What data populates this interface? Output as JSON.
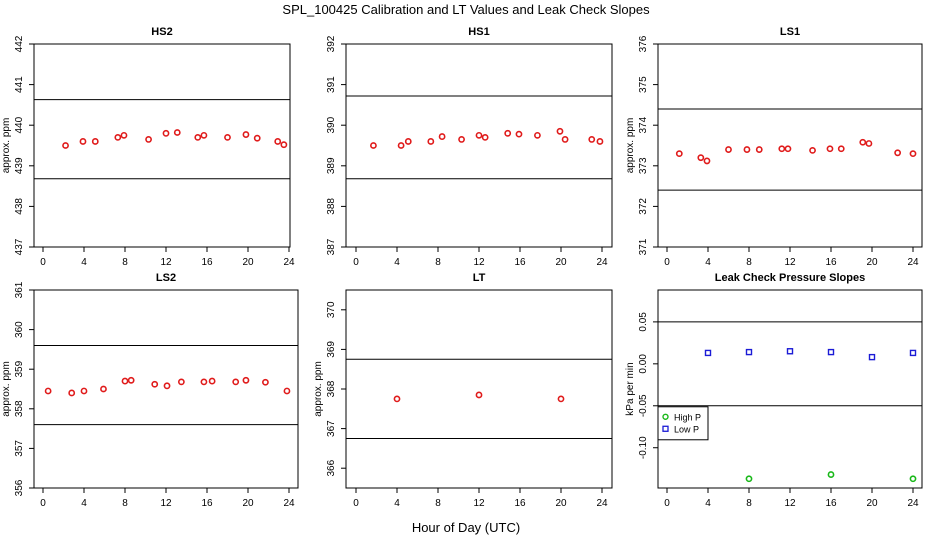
{
  "figure": {
    "title": "SPL_100425  Calibration and LT Values and Leak Check Slopes",
    "xlabel": "Hour of Day (UTC)"
  },
  "colors": {
    "cal_points": "#e01b1b",
    "high_p": "#19b819",
    "low_p": "#1b1bd6",
    "axis": "#000000"
  },
  "chart_data": [
    {
      "type": "scatter",
      "title": "HS2",
      "ylabel": "approx. ppm",
      "xlim": [
        0,
        24
      ],
      "xticks": [
        0,
        4,
        8,
        12,
        16,
        20,
        24
      ],
      "ylim": [
        437,
        442
      ],
      "yticks": [
        437,
        438,
        439,
        440,
        441,
        442
      ],
      "hlines": [
        440.63,
        438.68
      ],
      "series": [
        {
          "color": "#e01b1b",
          "marker": "circle",
          "x": [
            2.2,
            3.9,
            5.1,
            7.3,
            7.9,
            10.3,
            12.0,
            13.1,
            15.1,
            15.7,
            18.0,
            19.8,
            20.9,
            22.9,
            23.5
          ],
          "y": [
            439.5,
            439.6,
            439.6,
            439.7,
            439.75,
            439.65,
            439.8,
            439.82,
            439.7,
            439.75,
            439.7,
            439.77,
            439.68,
            439.6,
            439.52
          ]
        }
      ]
    },
    {
      "type": "scatter",
      "title": "HS1",
      "ylabel": "",
      "xlim": [
        0,
        24
      ],
      "xticks": [
        0,
        4,
        8,
        12,
        16,
        20,
        24
      ],
      "ylim": [
        387,
        392
      ],
      "yticks": [
        387,
        388,
        389,
        390,
        391,
        392
      ],
      "hlines": [
        390.72,
        388.68
      ],
      "series": [
        {
          "color": "#e01b1b",
          "marker": "circle",
          "x": [
            1.7,
            4.4,
            5.1,
            7.3,
            8.4,
            10.3,
            12.0,
            12.6,
            14.8,
            15.9,
            17.7,
            19.9,
            20.4,
            23.0,
            23.8
          ],
          "y": [
            389.5,
            389.5,
            389.6,
            389.6,
            389.72,
            389.65,
            389.75,
            389.7,
            389.8,
            389.78,
            389.75,
            389.85,
            389.65,
            389.65,
            389.6
          ]
        }
      ]
    },
    {
      "type": "scatter",
      "title": "LS1",
      "ylabel": "approx. ppm",
      "xlim": [
        0,
        24
      ],
      "xticks": [
        0,
        4,
        8,
        12,
        16,
        20,
        24
      ],
      "ylim": [
        371,
        376
      ],
      "yticks": [
        371,
        372,
        373,
        374,
        375,
        376
      ],
      "hlines": [
        374.4,
        372.4
      ],
      "series": [
        {
          "color": "#e01b1b",
          "marker": "circle",
          "x": [
            1.2,
            3.3,
            3.9,
            6.0,
            7.8,
            9.0,
            11.2,
            11.8,
            14.2,
            15.9,
            17.0,
            19.1,
            19.7,
            22.5,
            24.0
          ],
          "y": [
            373.3,
            373.2,
            373.12,
            373.4,
            373.4,
            373.4,
            373.42,
            373.42,
            373.38,
            373.42,
            373.42,
            373.58,
            373.55,
            373.32,
            373.3
          ]
        }
      ]
    },
    {
      "type": "scatter",
      "title": "LS2",
      "ylabel": "approx. ppm",
      "xlim": [
        0,
        24
      ],
      "xticks": [
        0,
        4,
        8,
        12,
        16,
        20,
        24
      ],
      "ylim": [
        356,
        361
      ],
      "yticks": [
        356,
        357,
        358,
        359,
        360,
        361
      ],
      "hlines": [
        359.6,
        357.6
      ],
      "series": [
        {
          "color": "#e01b1b",
          "marker": "circle",
          "x": [
            0.5,
            2.8,
            4.0,
            5.9,
            8.0,
            8.6,
            10.9,
            12.1,
            13.5,
            15.7,
            16.5,
            18.8,
            19.8,
            21.7,
            23.8
          ],
          "y": [
            358.45,
            358.4,
            358.45,
            358.5,
            358.7,
            358.72,
            358.62,
            358.58,
            358.68,
            358.68,
            358.7,
            358.68,
            358.72,
            358.67,
            358.45
          ]
        }
      ]
    },
    {
      "type": "scatter",
      "title": "LT",
      "ylabel": "approx. ppm",
      "xlim": [
        0,
        24
      ],
      "xticks": [
        0,
        4,
        8,
        12,
        16,
        20,
        24
      ],
      "ylim": [
        365.5,
        370.5
      ],
      "yticks": [
        366,
        367,
        368,
        369,
        370
      ],
      "hlines": [
        368.75,
        366.75
      ],
      "series": [
        {
          "color": "#e01b1b",
          "marker": "circle",
          "x": [
            4.0,
            12.0,
            20.0
          ],
          "y": [
            367.75,
            367.85,
            367.75
          ]
        }
      ]
    },
    {
      "type": "scatter",
      "title": "Leak Check Pressure Slopes",
      "ylabel": "kPa per min",
      "xlim": [
        0,
        24
      ],
      "xticks": [
        0,
        4,
        8,
        12,
        16,
        20,
        24
      ],
      "ylim": [
        -0.148,
        0.088
      ],
      "yticks": [
        -0.1,
        -0.05,
        0.0,
        0.05
      ],
      "ytick_labels": [
        "-0.10",
        "-0.05",
        "0.00",
        "0.05"
      ],
      "hlines": [
        0.05,
        -0.05
      ],
      "legend": "bottom-left",
      "series": [
        {
          "name": "High P",
          "color": "#19b819",
          "marker": "circle",
          "x": [
            8.0,
            16.0,
            24.0
          ],
          "y": [
            -0.137,
            -0.132,
            -0.137
          ]
        },
        {
          "name": "Low P",
          "color": "#1b1bd6",
          "marker": "square",
          "x": [
            4.0,
            8.0,
            12.0,
            16.0,
            20.0,
            24.0
          ],
          "y": [
            0.013,
            0.014,
            0.015,
            0.014,
            0.008,
            0.013
          ]
        }
      ]
    }
  ]
}
